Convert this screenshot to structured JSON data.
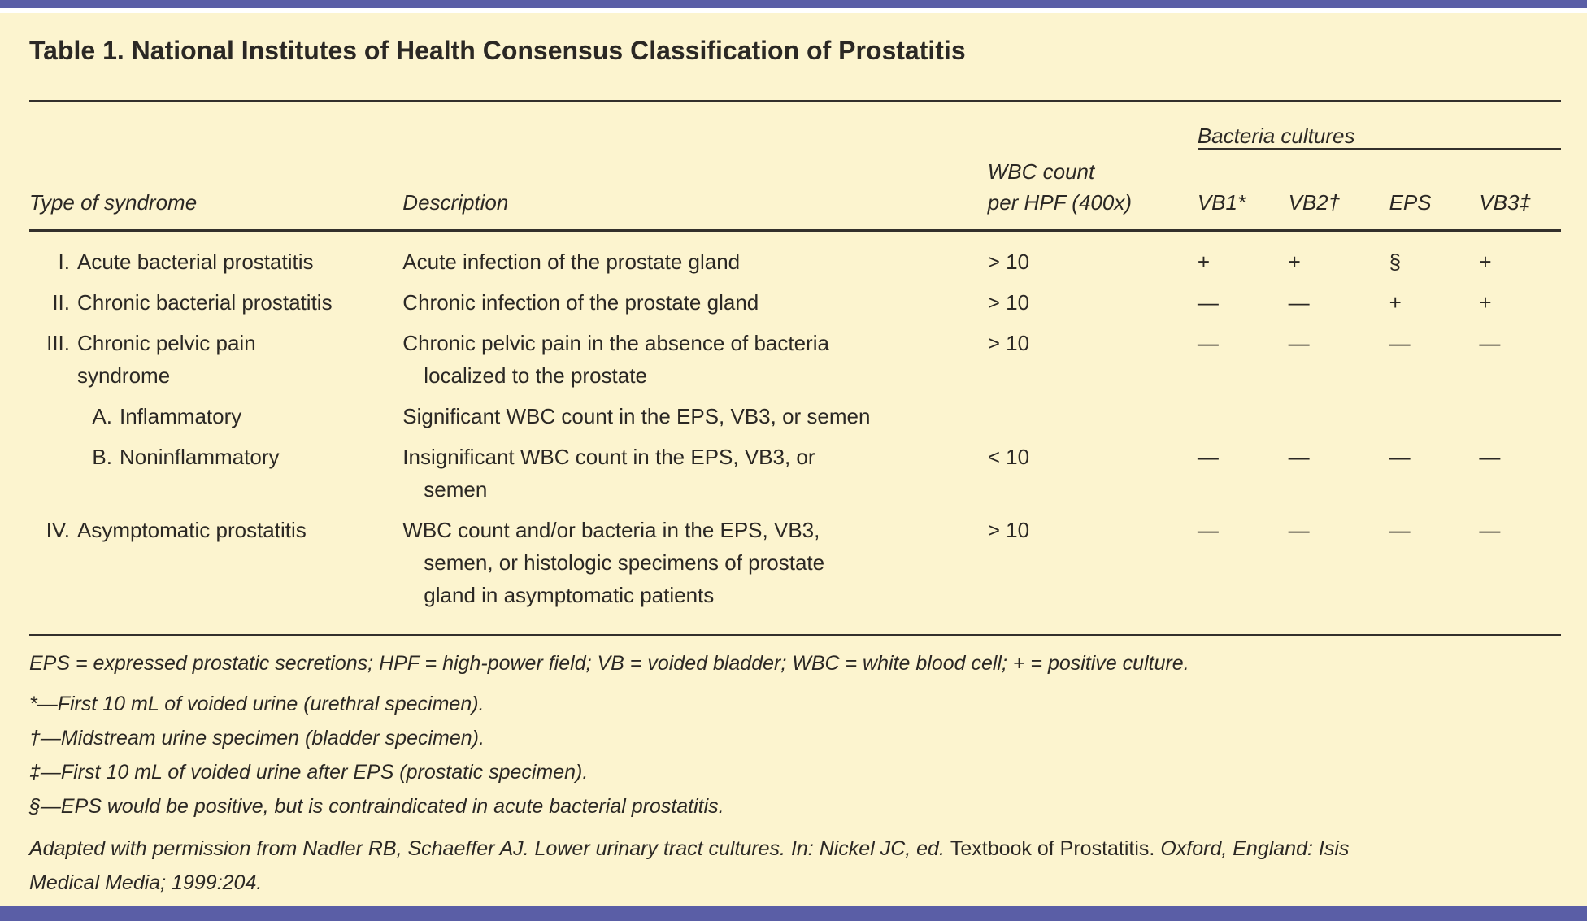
{
  "page": {
    "title": "Table 1. National Institutes of Health Consensus Classification of Prostatitis"
  },
  "colors": {
    "band_purple": "#5a5ea6",
    "background_cream": "#fcf4cf",
    "text": "#2b2824",
    "rule": "#33302c"
  },
  "table": {
    "group_header": "Bacteria cultures",
    "columns": {
      "type": "Type of syndrome",
      "description": "Description",
      "wbc_lines": [
        "WBC count",
        "per HPF (400x)"
      ],
      "vb1": "VB1*",
      "vb2": "VB2†",
      "eps": "EPS",
      "vb3": "VB3‡"
    },
    "rows": [
      {
        "num": "I.",
        "type_lines": [
          "Acute bacterial prostatitis"
        ],
        "description_lines": [
          "Acute infection of the prostate gland"
        ],
        "wbc": "> 10",
        "vb1": "+",
        "vb2": "+",
        "eps": "§",
        "vb3": "+"
      },
      {
        "num": "II.",
        "type_lines": [
          "Chronic bacterial prostatitis"
        ],
        "description_lines": [
          "Chronic infection of the prostate gland"
        ],
        "wbc": "> 10",
        "vb1": "—",
        "vb2": "—",
        "eps": "+",
        "vb3": "+"
      },
      {
        "num": "III.",
        "type_lines": [
          "Chronic pelvic pain",
          "syndrome"
        ],
        "description_lines": [
          "Chronic pelvic pain in the absence of bacteria",
          "localized to the prostate"
        ],
        "wbc": "> 10",
        "vb1": "—",
        "vb2": "—",
        "eps": "—",
        "vb3": "—"
      },
      {
        "num": "A.",
        "type_lines": [
          "Inflammatory"
        ],
        "description_lines": [
          "Significant WBC count in the EPS, VB3, or semen"
        ],
        "wbc": "",
        "vb1": "",
        "vb2": "",
        "eps": "",
        "vb3": ""
      },
      {
        "num": "B.",
        "type_lines": [
          "Noninflammatory"
        ],
        "description_lines": [
          "Insignificant WBC count in the EPS, VB3, or",
          "semen"
        ],
        "wbc": "< 10",
        "vb1": "—",
        "vb2": "—",
        "eps": "—",
        "vb3": "—"
      },
      {
        "num": "IV.",
        "type_lines": [
          "Asymptomatic prostatitis"
        ],
        "description_lines": [
          "WBC count and/or bacteria in the EPS, VB3,",
          "semen, or histologic specimens of prostate",
          "gland in asymptomatic patients"
        ],
        "wbc": "> 10",
        "vb1": "—",
        "vb2": "—",
        "eps": "—",
        "vb3": "—"
      }
    ]
  },
  "footnotes": {
    "abbreviations": "EPS = expressed prostatic secretions; HPF = high-power field; VB = voided bladder; WBC = white blood cell; + = positive culture.",
    "asterisk": "*—First 10 mL of voided urine (urethral specimen).",
    "dagger": "†—Midstream urine specimen (bladder specimen).",
    "double_dagger": "‡—First 10 mL of voided urine after EPS (prostatic specimen).",
    "section": "§—EPS would be positive, but is contraindicated in acute bacterial prostatitis."
  },
  "citation": {
    "italic_1": "Adapted with permission from Nadler RB, Schaeffer AJ. Lower urinary tract cultures. In: Nickel JC, ed. ",
    "roman": "Textbook of Prostatitis.",
    "italic_2": " Oxford, England: Isis",
    "line_2": "Medical Media; 1999:204."
  }
}
